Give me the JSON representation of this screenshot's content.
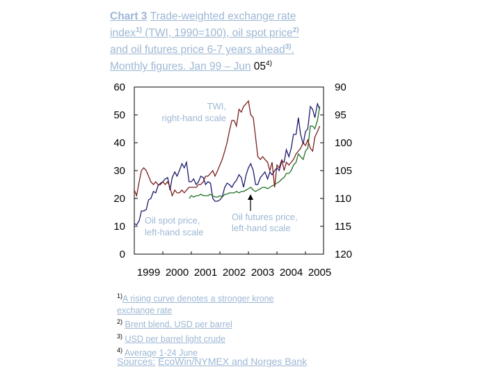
{
  "title": {
    "chart_label": "Chart 3",
    "line1": "Trade-weighted exchange rate",
    "line2_a": "index",
    "line2_sup": "1)",
    "line2_b": "(TWI, 1990=100), oil spot price",
    "line2_sup2": "2)",
    "line3_a": "and oil futures price 6-7 years ahead",
    "line3_sup": "3)",
    "line3_b": ".",
    "line4_a": "Monthly figures. Jan 99 – Jun",
    "line4_b": "05",
    "line4_sup": "4)"
  },
  "annotations": {
    "twi_line1": "TWI,",
    "twi_line2": "right-hand scale",
    "oil_spot_line1": "Oil spot price,",
    "oil_spot_line2": "left-hand scale",
    "oil_futures_line1": "Oil futures price,",
    "oil_futures_line2": "left-hand scale"
  },
  "footnotes": [
    {
      "sup": "1)",
      "text": "A rising curve denotes a stronger krone"
    },
    {
      "sup": "",
      "text": "exchange rate"
    },
    {
      "sup": "2)",
      "text": "Brent blend, USD per barrel"
    },
    {
      "sup": "3)",
      "text": "USD per barrel light crude"
    },
    {
      "sup": "4)",
      "text": "Average 1-24 June"
    }
  ],
  "sources": {
    "label": "Sources:",
    "text": "EcoWin/NYMEX and Norges Bank"
  },
  "chart_data": {
    "type": "line",
    "x_tick_labels": [
      "1999",
      "2000",
      "2001",
      "2002",
      "2003",
      "2004",
      "2005"
    ],
    "left_axis": {
      "ticks": [
        "60",
        "50",
        "40",
        "30",
        "20",
        "10",
        "0"
      ],
      "ylim": [
        0,
        60
      ]
    },
    "right_axis": {
      "ticks": [
        "90",
        "95",
        "100",
        "105",
        "110",
        "115",
        "120"
      ],
      "ylim": [
        120,
        90
      ],
      "inverted": true
    },
    "xlim": [
      1999.0,
      2005.5
    ],
    "series": [
      {
        "key": "oil_spot",
        "axis": "left",
        "color": "#1a1a6e",
        "points": [
          [
            1999.0,
            11
          ],
          [
            1999.08,
            10.5
          ],
          [
            1999.17,
            12
          ],
          [
            1999.25,
            15.5
          ],
          [
            1999.33,
            15.5
          ],
          [
            1999.42,
            16
          ],
          [
            1999.5,
            19.5
          ],
          [
            1999.58,
            20
          ],
          [
            1999.67,
            22.5
          ],
          [
            1999.75,
            22
          ],
          [
            1999.83,
            24.5
          ],
          [
            1999.92,
            25.5
          ],
          [
            2000.0,
            26
          ],
          [
            2000.08,
            27
          ],
          [
            2000.17,
            27.5
          ],
          [
            2000.25,
            23
          ],
          [
            2000.33,
            27.5
          ],
          [
            2000.42,
            29.5
          ],
          [
            2000.5,
            28
          ],
          [
            2000.58,
            30
          ],
          [
            2000.67,
            32.5
          ],
          [
            2000.75,
            31
          ],
          [
            2000.83,
            33
          ],
          [
            2000.92,
            26
          ],
          [
            2001.0,
            26
          ],
          [
            2001.08,
            27
          ],
          [
            2001.17,
            25
          ],
          [
            2001.25,
            26
          ],
          [
            2001.33,
            28
          ],
          [
            2001.42,
            27.5
          ],
          [
            2001.5,
            25
          ],
          [
            2001.58,
            26
          ],
          [
            2001.67,
            25.5
          ],
          [
            2001.75,
            20
          ],
          [
            2001.83,
            19
          ],
          [
            2001.92,
            19
          ],
          [
            2002.0,
            19.5
          ],
          [
            2002.08,
            20.5
          ],
          [
            2002.17,
            24
          ],
          [
            2002.25,
            25.5
          ],
          [
            2002.33,
            25
          ],
          [
            2002.42,
            24
          ],
          [
            2002.5,
            25.5
          ],
          [
            2002.58,
            26.5
          ],
          [
            2002.67,
            28.5
          ],
          [
            2002.75,
            27.5
          ],
          [
            2002.83,
            24
          ],
          [
            2002.92,
            28.5
          ],
          [
            2003.0,
            31
          ],
          [
            2003.08,
            32.5
          ],
          [
            2003.17,
            30
          ],
          [
            2003.25,
            25
          ],
          [
            2003.33,
            25
          ],
          [
            2003.42,
            27.5
          ],
          [
            2003.5,
            28.5
          ],
          [
            2003.58,
            29.5
          ],
          [
            2003.67,
            27
          ],
          [
            2003.75,
            29.5
          ],
          [
            2003.83,
            28.5
          ],
          [
            2003.92,
            30
          ],
          [
            2004.0,
            31
          ],
          [
            2004.08,
            30
          ],
          [
            2004.17,
            33.5
          ],
          [
            2004.25,
            33
          ],
          [
            2004.33,
            37.5
          ],
          [
            2004.42,
            35
          ],
          [
            2004.5,
            38
          ],
          [
            2004.58,
            43
          ],
          [
            2004.67,
            43
          ],
          [
            2004.75,
            49
          ],
          [
            2004.83,
            43
          ],
          [
            2004.92,
            39.5
          ],
          [
            2005.0,
            44
          ],
          [
            2005.08,
            45
          ],
          [
            2005.17,
            53
          ],
          [
            2005.25,
            52
          ],
          [
            2005.33,
            49
          ],
          [
            2005.42,
            54
          ],
          [
            2005.5,
            52
          ]
        ]
      },
      {
        "key": "oil_futures",
        "axis": "left",
        "color": "#1e6e1e",
        "points": [
          [
            2000.92,
            20
          ],
          [
            2001.0,
            21
          ],
          [
            2001.08,
            20.5
          ],
          [
            2001.17,
            21
          ],
          [
            2001.25,
            21
          ],
          [
            2001.33,
            21.5
          ],
          [
            2001.42,
            21
          ],
          [
            2001.5,
            21
          ],
          [
            2001.58,
            21
          ],
          [
            2001.67,
            21.5
          ],
          [
            2001.75,
            21
          ],
          [
            2001.83,
            20.5
          ],
          [
            2001.92,
            20.5
          ],
          [
            2002.0,
            21
          ],
          [
            2002.08,
            20.5
          ],
          [
            2002.17,
            21.5
          ],
          [
            2002.25,
            21.5
          ],
          [
            2002.33,
            22
          ],
          [
            2002.42,
            22
          ],
          [
            2002.5,
            22
          ],
          [
            2002.58,
            22.5
          ],
          [
            2002.67,
            22
          ],
          [
            2002.75,
            22.5
          ],
          [
            2002.83,
            22.5
          ],
          [
            2002.92,
            23
          ],
          [
            2003.0,
            23.5
          ],
          [
            2003.08,
            24
          ],
          [
            2003.17,
            23
          ],
          [
            2003.25,
            22.5
          ],
          [
            2003.33,
            23
          ],
          [
            2003.42,
            23.5
          ],
          [
            2003.5,
            24
          ],
          [
            2003.58,
            24
          ],
          [
            2003.67,
            23.5
          ],
          [
            2003.75,
            24
          ],
          [
            2003.83,
            24.5
          ],
          [
            2003.92,
            25
          ],
          [
            2004.0,
            25.5
          ],
          [
            2004.08,
            26
          ],
          [
            2004.17,
            27
          ],
          [
            2004.25,
            27.5
          ],
          [
            2004.33,
            29
          ],
          [
            2004.42,
            29
          ],
          [
            2004.5,
            30
          ],
          [
            2004.58,
            32
          ],
          [
            2004.67,
            33
          ],
          [
            2004.75,
            36
          ],
          [
            2004.83,
            35
          ],
          [
            2004.92,
            34
          ],
          [
            2005.0,
            37
          ],
          [
            2005.08,
            38
          ],
          [
            2005.17,
            46
          ],
          [
            2005.25,
            46
          ],
          [
            2005.33,
            45
          ],
          [
            2005.42,
            48
          ],
          [
            2005.5,
            53
          ]
        ]
      },
      {
        "key": "twi",
        "axis": "right",
        "color": "#7a1e1e",
        "points": [
          [
            1999.0,
            108.5
          ],
          [
            1999.08,
            109.5
          ],
          [
            1999.17,
            107
          ],
          [
            1999.25,
            105
          ],
          [
            1999.33,
            104.5
          ],
          [
            1999.42,
            105
          ],
          [
            1999.5,
            106
          ],
          [
            1999.58,
            107
          ],
          [
            1999.67,
            107.5
          ],
          [
            1999.75,
            107
          ],
          [
            1999.83,
            107.5
          ],
          [
            1999.92,
            107.5
          ],
          [
            2000.0,
            107
          ],
          [
            2000.08,
            107.5
          ],
          [
            2000.17,
            107
          ],
          [
            2000.25,
            108
          ],
          [
            2000.33,
            109.5
          ],
          [
            2000.42,
            108.5
          ],
          [
            2000.5,
            109
          ],
          [
            2000.58,
            109
          ],
          [
            2000.67,
            108.5
          ],
          [
            2000.75,
            109
          ],
          [
            2000.83,
            108.5
          ],
          [
            2000.92,
            108
          ],
          [
            2001.0,
            108
          ],
          [
            2001.08,
            108
          ],
          [
            2001.17,
            108
          ],
          [
            2001.25,
            107.5
          ],
          [
            2001.33,
            107.5
          ],
          [
            2001.42,
            107
          ],
          [
            2001.5,
            106
          ],
          [
            2001.58,
            106
          ],
          [
            2001.67,
            105.5
          ],
          [
            2001.75,
            105
          ],
          [
            2001.83,
            106
          ],
          [
            2001.92,
            105
          ],
          [
            2002.0,
            104
          ],
          [
            2002.08,
            103
          ],
          [
            2002.17,
            101.5
          ],
          [
            2002.25,
            100
          ],
          [
            2002.33,
            98
          ],
          [
            2002.42,
            96
          ],
          [
            2002.5,
            96
          ],
          [
            2002.58,
            97
          ],
          [
            2002.67,
            94
          ],
          [
            2002.75,
            94.5
          ],
          [
            2002.83,
            93.5
          ],
          [
            2002.92,
            93
          ],
          [
            2003.0,
            92.5
          ],
          [
            2003.08,
            95
          ],
          [
            2003.17,
            95.5
          ],
          [
            2003.25,
            99
          ],
          [
            2003.33,
            102.5
          ],
          [
            2003.42,
            103
          ],
          [
            2003.5,
            102.5
          ],
          [
            2003.58,
            103
          ],
          [
            2003.67,
            103.5
          ],
          [
            2003.75,
            105
          ],
          [
            2003.83,
            103.5
          ],
          [
            2003.92,
            108
          ],
          [
            2004.0,
            104
          ],
          [
            2004.08,
            104.5
          ],
          [
            2004.17,
            103
          ],
          [
            2004.25,
            105
          ],
          [
            2004.33,
            103.5
          ],
          [
            2004.42,
            104
          ],
          [
            2004.5,
            103.5
          ],
          [
            2004.58,
            103
          ],
          [
            2004.67,
            102
          ],
          [
            2004.75,
            101.5
          ],
          [
            2004.83,
            101
          ],
          [
            2004.92,
            100
          ],
          [
            2005.0,
            100.5
          ],
          [
            2005.08,
            99.5
          ],
          [
            2005.17,
            101
          ],
          [
            2005.25,
            101.5
          ],
          [
            2005.33,
            99
          ],
          [
            2005.42,
            98
          ],
          [
            2005.5,
            97
          ]
        ]
      }
    ]
  }
}
